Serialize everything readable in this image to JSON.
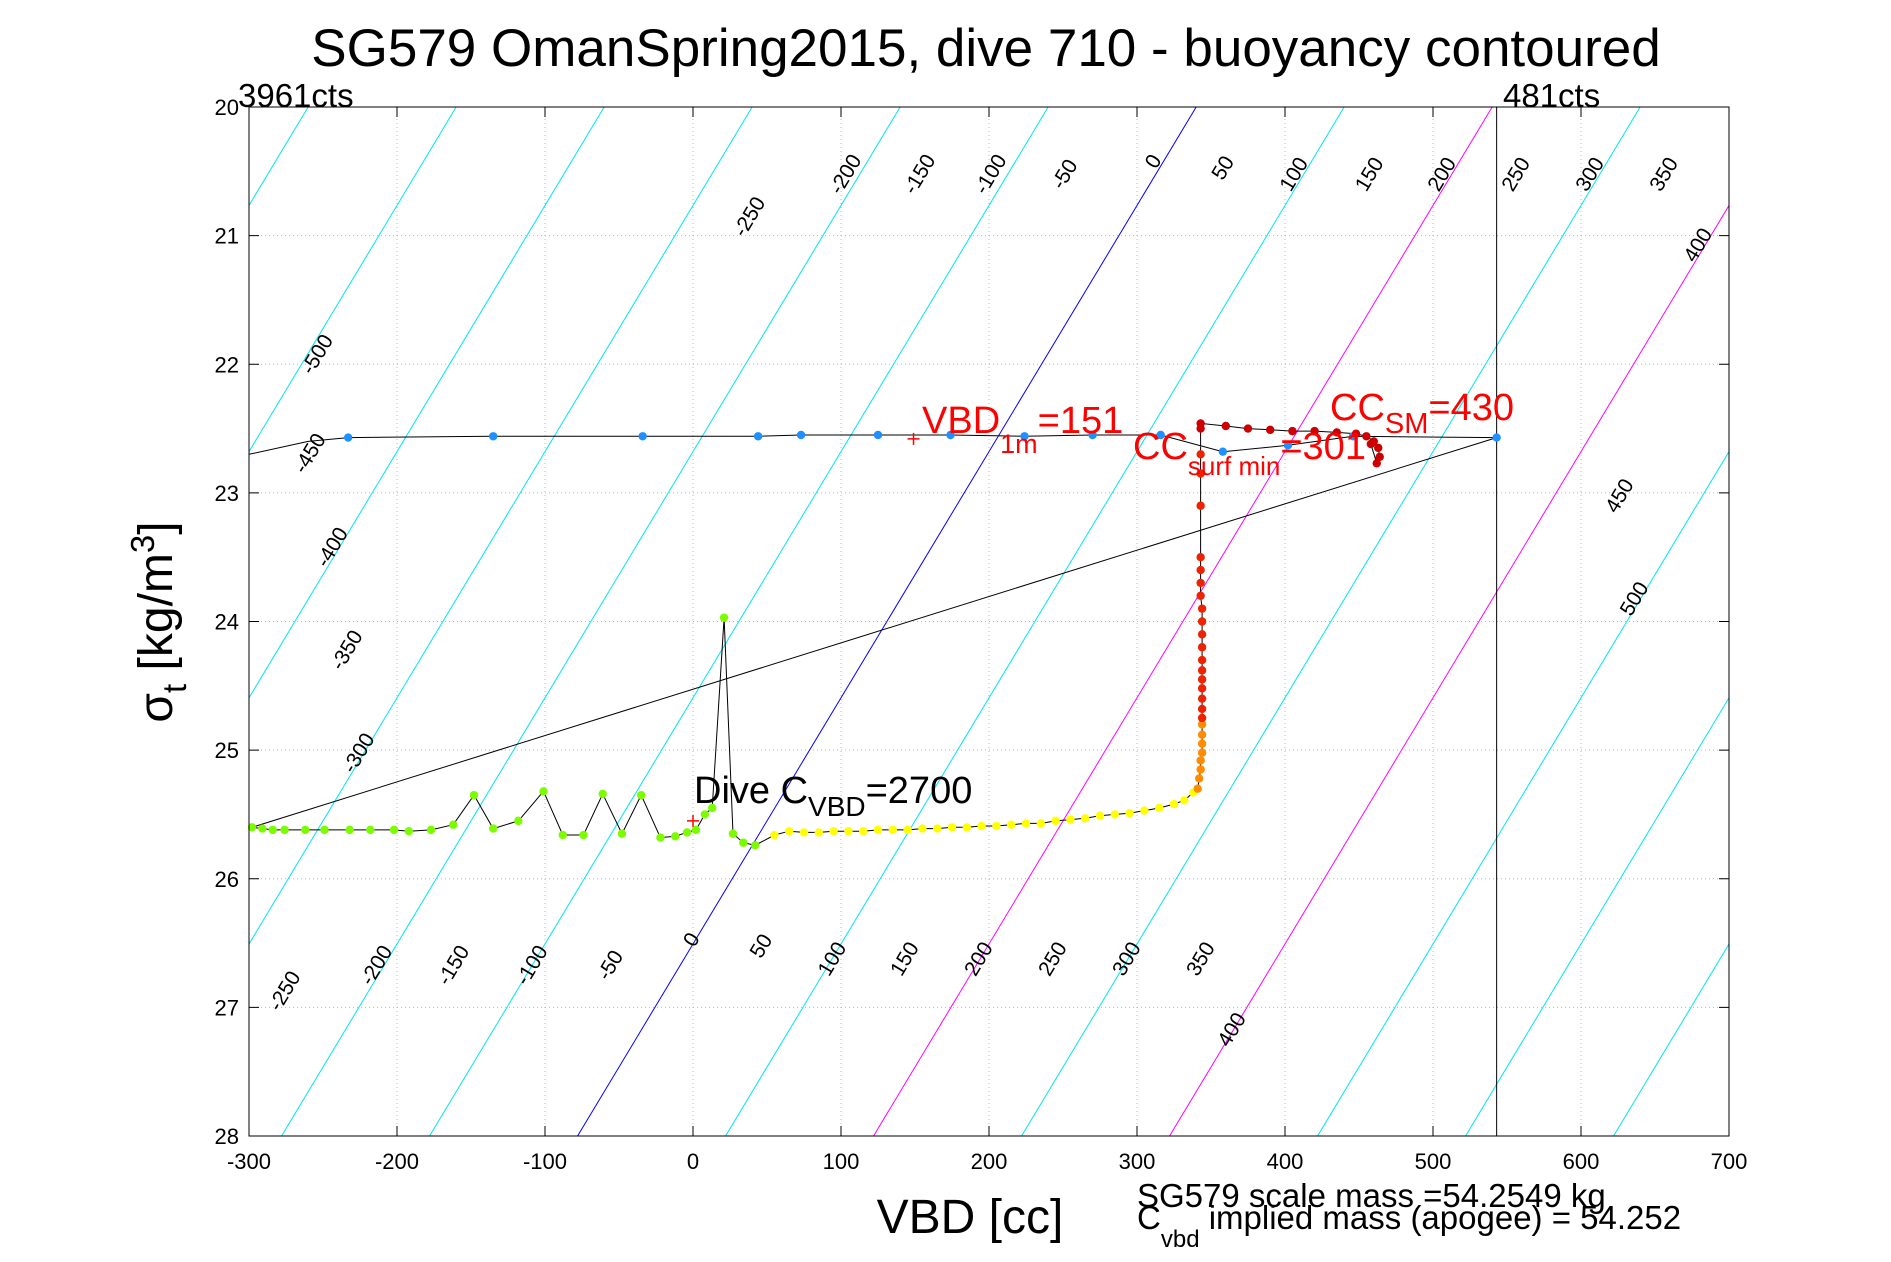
{
  "chart_data": {
    "type": "scatter",
    "title": "SG579 OmanSpring2015, dive 710 - buoyancy contoured",
    "xlabel": "VBD [cc]",
    "ylabel": {
      "sigma": "σ",
      "sub": "t",
      "main": " [kg/m",
      "sup": "3",
      "close": "]"
    },
    "xlim": [
      -300,
      700
    ],
    "ylim": [
      20,
      28
    ],
    "y_reversed": true,
    "grid": true,
    "xticks": [
      "-300",
      "-200",
      "-100",
      "0",
      "100",
      "200",
      "300",
      "400",
      "500",
      "600",
      "700"
    ],
    "xtick_values": [
      -300,
      -200,
      -100,
      0,
      100,
      200,
      300,
      400,
      500,
      600,
      700
    ],
    "yticks": [
      "20",
      "21",
      "22",
      "23",
      "24",
      "25",
      "26",
      "27",
      "28"
    ],
    "ytick_values": [
      20,
      21,
      22,
      23,
      24,
      25,
      26,
      27,
      28
    ],
    "counts_left": "3961cts",
    "counts_right": "481cts",
    "vbd_limits": [
      -300,
      543
    ],
    "contours": {
      "values": [
        -500,
        -450,
        -400,
        -350,
        -300,
        -250,
        -200,
        -150,
        -100,
        -50,
        0,
        50,
        100,
        150,
        200,
        250,
        300,
        350,
        400,
        450,
        500
      ],
      "zero_color": "#0000ff",
      "highlight_values": [
        100,
        200
      ],
      "highlight_color": "#ff00ff",
      "default_color": "#00e5ee",
      "x_at_sigma20_for_zero": 340,
      "x_at_sigma28_for_zero": -78,
      "spacing_cc_per_50": 100,
      "labels_upper": [
        {
          "text": "-500",
          "x": -250,
          "y": 21.95
        },
        {
          "text": "-450",
          "x": -255,
          "y": 22.72
        },
        {
          "text": "-400",
          "x": -240,
          "y": 23.45
        },
        {
          "text": "-350",
          "x": -230,
          "y": 24.25
        },
        {
          "text": "-300",
          "x": -222,
          "y": 25.05
        },
        {
          "text": "-250",
          "x": 42,
          "y": 20.88
        },
        {
          "text": "-200",
          "x": 107,
          "y": 20.55
        },
        {
          "text": "-150",
          "x": 157,
          "y": 20.55
        },
        {
          "text": "-100",
          "x": 205,
          "y": 20.55
        },
        {
          "text": "-50",
          "x": 255,
          "y": 20.55
        },
        {
          "text": "0",
          "x": 315,
          "y": 20.45
        },
        {
          "text": "50",
          "x": 362,
          "y": 20.5
        },
        {
          "text": "100",
          "x": 410,
          "y": 20.55
        },
        {
          "text": "150",
          "x": 461,
          "y": 20.55
        },
        {
          "text": "200",
          "x": 510,
          "y": 20.55
        },
        {
          "text": "250",
          "x": 560,
          "y": 20.55
        },
        {
          "text": "300",
          "x": 610,
          "y": 20.55
        },
        {
          "text": "350",
          "x": 660,
          "y": 20.55
        },
        {
          "text": "400",
          "x": 683,
          "y": 21.1
        },
        {
          "text": "450",
          "x": 630,
          "y": 23.05
        },
        {
          "text": "500",
          "x": 640,
          "y": 23.85
        }
      ],
      "labels_lower": [
        {
          "text": "-250",
          "x": -272,
          "y": 26.9
        },
        {
          "text": "-200",
          "x": -210,
          "y": 26.7
        },
        {
          "text": "-150",
          "x": -158,
          "y": 26.7
        },
        {
          "text": "-100",
          "x": -105,
          "y": 26.7
        },
        {
          "text": "-50",
          "x": -52,
          "y": 26.7
        },
        {
          "text": "0",
          "x": 3,
          "y": 26.5
        },
        {
          "text": "50",
          "x": 50,
          "y": 26.55
        },
        {
          "text": "100",
          "x": 98,
          "y": 26.65
        },
        {
          "text": "150",
          "x": 147,
          "y": 26.65
        },
        {
          "text": "200",
          "x": 197,
          "y": 26.65
        },
        {
          "text": "250",
          "x": 247,
          "y": 26.65
        },
        {
          "text": "300",
          "x": 297,
          "y": 26.65
        },
        {
          "text": "350",
          "x": 347,
          "y": 26.65
        },
        {
          "text": "400",
          "x": 368,
          "y": 27.2
        }
      ]
    },
    "series": [
      {
        "color": "#1e90ff",
        "x": [
          -233,
          -135,
          -34,
          44,
          73,
          125,
          174,
          224,
          270,
          316,
          358,
          402,
          446,
          543
        ],
        "y": [
          22.57,
          22.56,
          22.56,
          22.56,
          22.55,
          22.55,
          22.55,
          22.56,
          22.55,
          22.55,
          22.68,
          22.63,
          22.56,
          22.57
        ],
        "line_lead_in": {
          "x": [
            -300,
            -260
          ],
          "y": [
            22.7,
            22.6
          ]
        }
      },
      {
        "color": "#7cfc00",
        "x": [
          -298,
          -291,
          -284,
          -276,
          -262,
          -249,
          -232,
          -218,
          -202,
          -192,
          -177,
          -162,
          -148,
          -135,
          -118,
          -101,
          -88,
          -74,
          -61,
          -48,
          -35,
          -22,
          -12,
          -4,
          2,
          8,
          13,
          21,
          27,
          34,
          42
        ],
        "y": [
          25.6,
          25.61,
          25.62,
          25.62,
          25.62,
          25.62,
          25.62,
          25.62,
          25.62,
          25.63,
          25.62,
          25.58,
          25.35,
          25.61,
          25.55,
          25.32,
          25.66,
          25.66,
          25.34,
          25.65,
          25.35,
          25.68,
          25.67,
          25.64,
          25.62,
          25.5,
          25.45,
          23.97,
          25.65,
          25.72,
          25.74
        ]
      },
      {
        "color": "#ffff00",
        "x": [
          55,
          65,
          75,
          85,
          95,
          105,
          115,
          125,
          135,
          145,
          155,
          165,
          175,
          185,
          195,
          205,
          215,
          225,
          235,
          245,
          255,
          265,
          275,
          285,
          295,
          305,
          315,
          325,
          332,
          338
        ],
        "y": [
          25.66,
          25.63,
          25.64,
          25.64,
          25.63,
          25.63,
          25.63,
          25.62,
          25.62,
          25.62,
          25.61,
          25.61,
          25.6,
          25.6,
          25.59,
          25.59,
          25.58,
          25.57,
          25.57,
          25.55,
          25.54,
          25.53,
          25.51,
          25.5,
          25.49,
          25.47,
          25.45,
          25.42,
          25.39,
          25.33
        ]
      },
      {
        "color": "#ff8c00",
        "x": [
          341,
          342,
          343,
          343,
          344,
          344,
          344,
          344
        ],
        "y": [
          25.3,
          25.22,
          25.15,
          25.08,
          25.02,
          24.95,
          24.88,
          24.8
        ]
      },
      {
        "color": "#ee2200",
        "x": [
          344,
          344,
          344,
          344,
          344,
          344,
          344,
          344,
          344,
          344,
          344,
          343,
          343,
          343,
          343,
          343,
          343,
          343
        ],
        "y": [
          24.75,
          24.68,
          24.6,
          24.52,
          24.45,
          24.38,
          24.3,
          24.2,
          24.1,
          24.0,
          23.9,
          23.8,
          23.7,
          23.6,
          23.5,
          23.1,
          22.85,
          22.7
        ]
      },
      {
        "color": "#cc0000",
        "x": [
          343,
          343,
          360,
          375,
          390,
          405,
          420,
          435,
          448,
          455,
          460,
          463,
          464,
          462,
          458
        ],
        "y": [
          22.5,
          22.46,
          22.48,
          22.5,
          22.51,
          22.52,
          22.52,
          22.53,
          22.54,
          22.56,
          22.6,
          22.65,
          22.72,
          22.77,
          22.62
        ]
      }
    ],
    "markers": [
      {
        "label": "Dive C_VBD",
        "x": 0,
        "y": 25.55
      },
      {
        "label": "VBD_1m",
        "x": 149,
        "y": 22.58
      }
    ],
    "annotations": {
      "dive_cvbd": {
        "main": "Dive C",
        "sub": "VBD",
        "value": "=2700"
      },
      "vbd_1m": {
        "main": "VBD",
        "sub": "1m",
        "value": "=151"
      },
      "cc_sm": {
        "main": "CC",
        "sub": "SM",
        "value": "=430"
      },
      "cc_surf_min": {
        "main": "CC",
        "sub": "surf min",
        "value": "=301"
      }
    },
    "footer": {
      "scale_mass": "SG579 scale mass =54.2549 kg",
      "implied_c": "C",
      "implied_sub": "vbd",
      "implied_rest": " implied mass (apogee) = 54.252"
    }
  }
}
